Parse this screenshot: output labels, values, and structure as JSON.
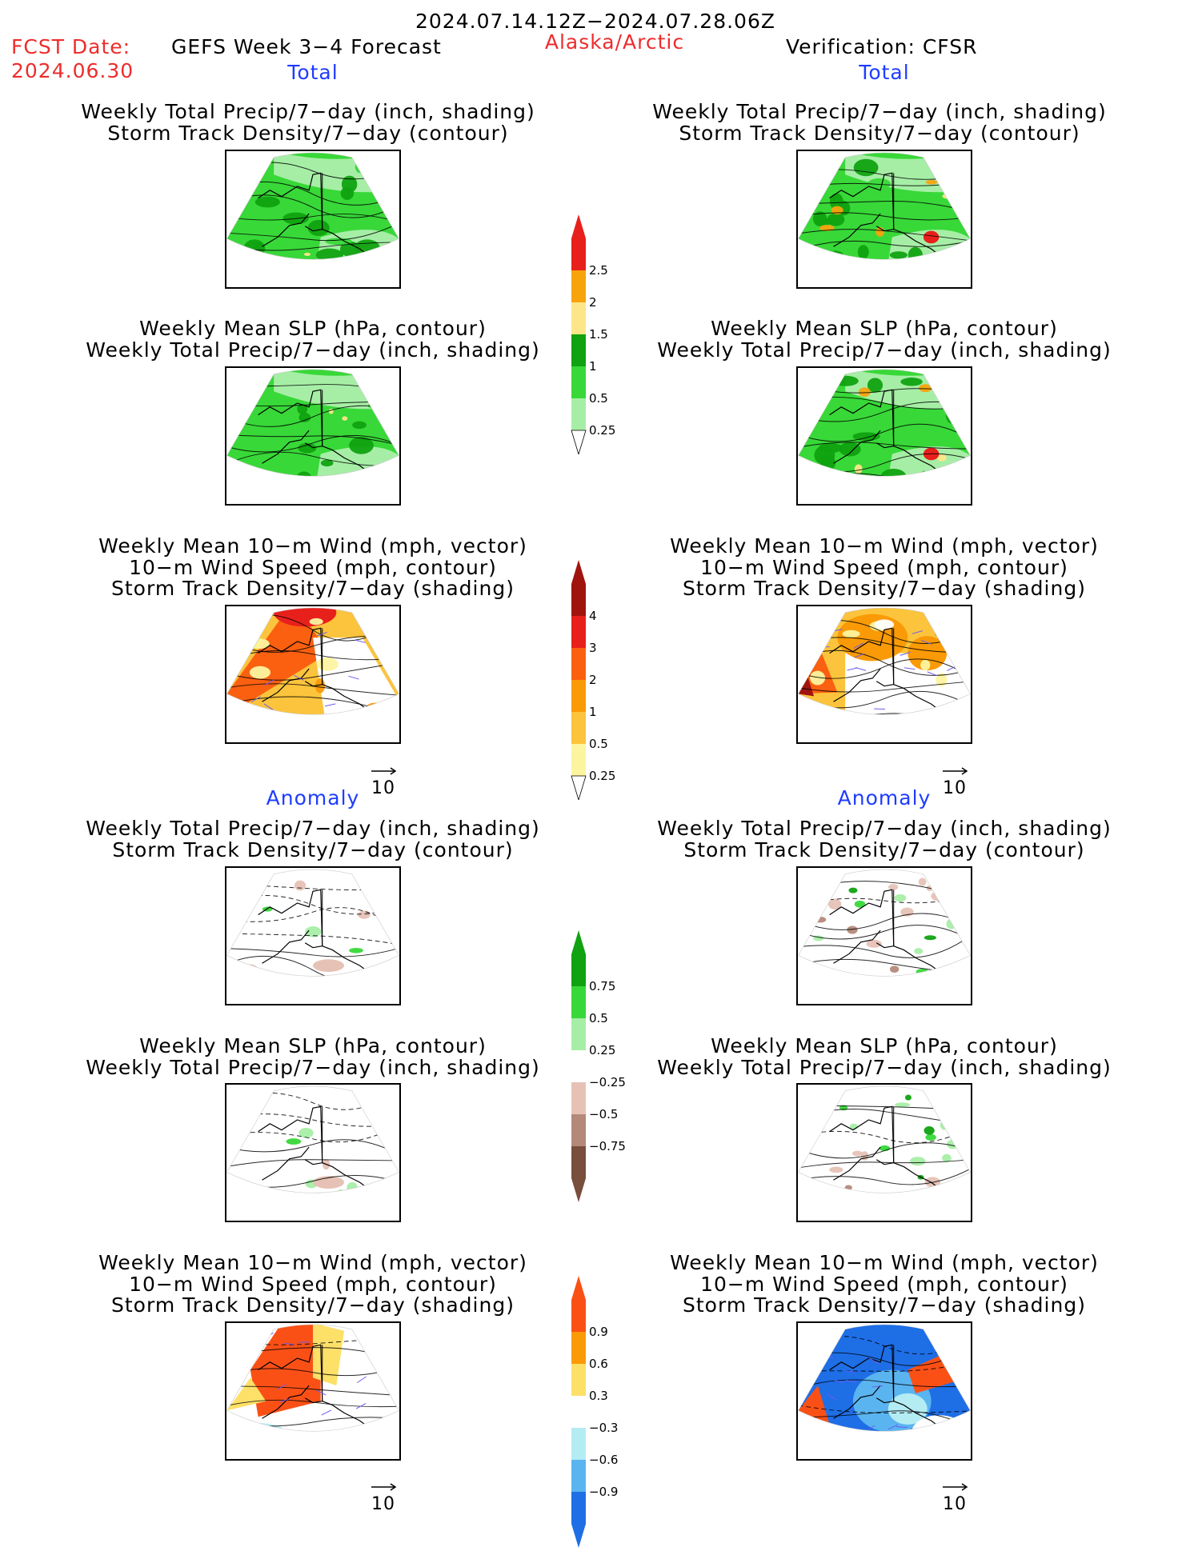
{
  "header": {
    "period": "2024.07.14.12Z−2024.07.28.06Z",
    "fcst_label": "FCST Date:",
    "fcst_date": "2024.06.30",
    "model": "GEFS Week 3−4 Forecast",
    "region": "Alaska/Arctic",
    "verification": "Verification: CFSR"
  },
  "sections": {
    "total": "Total",
    "anomaly": "Anomaly"
  },
  "panel_titles": {
    "precip_storm": [
      "Weekly Total Precip/7−day (inch, shading)",
      "Storm Track Density/7−day (contour)"
    ],
    "slp_precip": [
      "Weekly Mean SLP (hPa, contour)",
      "Weekly Total Precip/7−day (inch, shading)"
    ],
    "wind": [
      "Weekly Mean 10−m Wind (mph, vector)",
      "10−m Wind Speed (mph, contour)",
      "Storm Track Density/7−day (shading)"
    ]
  },
  "vector_key": "10",
  "colorbars": {
    "precip_total": {
      "labels": [
        "2.5",
        "2",
        "1.5",
        "1",
        "0.5",
        "0.25"
      ],
      "colors": [
        "#e8201c",
        "#f7a30c",
        "#fde68a",
        "#10a210",
        "#38d838",
        "#a6eea6"
      ]
    },
    "storm_total": {
      "labels": [
        "4",
        "3",
        "2",
        "1",
        "0.5",
        "0.25"
      ],
      "colors": [
        "#a0140e",
        "#e8201c",
        "#fa6010",
        "#fa9a06",
        "#fcc43c",
        "#fdf4a0"
      ]
    },
    "precip_anom": {
      "labels": [
        "0.75",
        "0.5",
        "0.25",
        "−0.25",
        "−0.5",
        "−0.75"
      ],
      "colors": [
        "#10a210",
        "#38d838",
        "#a6eea6",
        "#ffffff",
        "#e6c2b6",
        "#b4897a",
        "#784e3c"
      ]
    },
    "storm_anom": {
      "labels": [
        "0.9",
        "0.6",
        "0.3",
        "−0.3",
        "−0.6",
        "−0.9"
      ],
      "colors": [
        "#fa5016",
        "#fa9a06",
        "#fde068",
        "#ffffff",
        "#b4ecf4",
        "#5ab4f0",
        "#1e6ee6"
      ]
    }
  }
}
